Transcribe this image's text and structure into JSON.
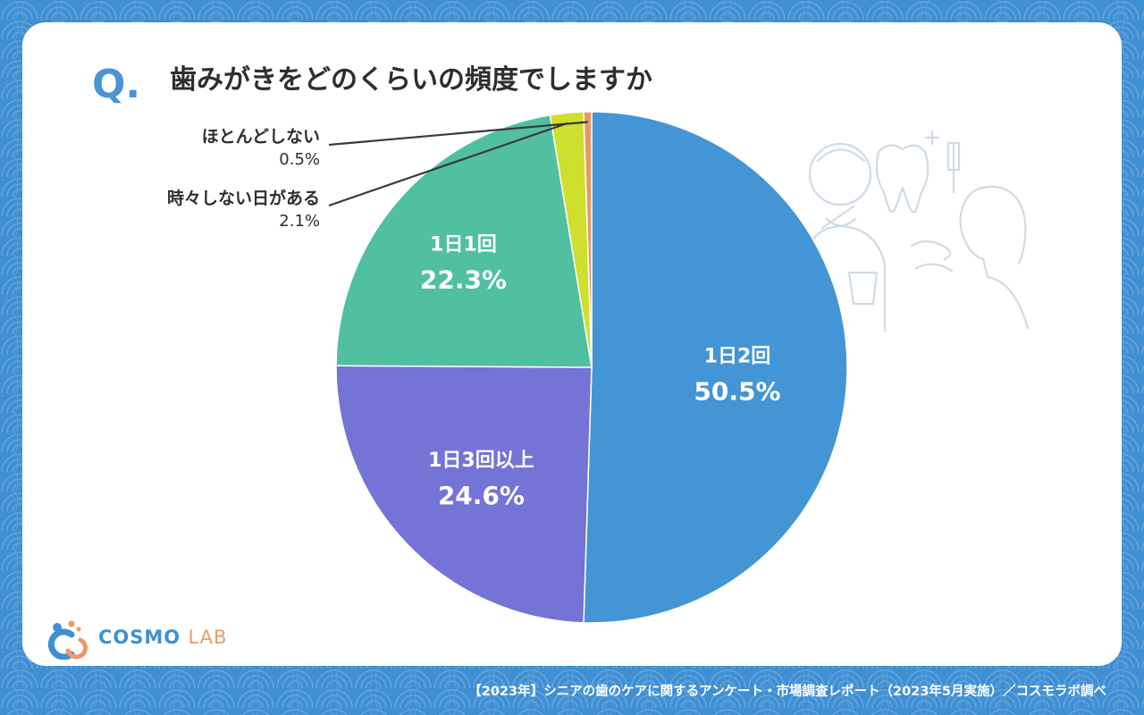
{
  "question": {
    "marker": "Q.",
    "text": "歯みがきをどのくらいの頻度でしますか"
  },
  "chart_data": {
    "type": "pie",
    "slices": [
      {
        "label": "1日2回",
        "value": 50.5,
        "value_label": "50.5%",
        "color": "#4495d5"
      },
      {
        "label": "1日3回以上",
        "value": 24.6,
        "value_label": "24.6%",
        "color": "#7473d6"
      },
      {
        "label": "1日1回",
        "value": 22.3,
        "value_label": "22.3%",
        "color": "#50c0a0"
      },
      {
        "label": "時々しない日がある",
        "value": 2.1,
        "value_label": "2.1%",
        "color": "#cfdf2e"
      },
      {
        "label": "ほとんどしない",
        "value": 0.5,
        "value_label": "0.5%",
        "color": "#ec9662"
      }
    ],
    "start": "12 o'clock",
    "direction": "clockwise"
  },
  "callouts": [
    {
      "name": "ほとんどしない",
      "value": "0.5%"
    },
    {
      "name": "時々しない日がある",
      "value": "2.1%"
    }
  ],
  "logo": {
    "part1": "COSMO",
    "part2": "LAB"
  },
  "footer": {
    "source": "【2023年】シニアの歯のケアに関するアンケート・市場調査レポート（2023年5月実施）／コスモラボ調べ"
  },
  "colors": {
    "background": "#3f8fd2",
    "card": "#ffffff",
    "accent": "#4a93d6",
    "logo_orange": "#e99a6a"
  },
  "illustration": {
    "icon": "seniors-brushing-teeth-illustration"
  }
}
